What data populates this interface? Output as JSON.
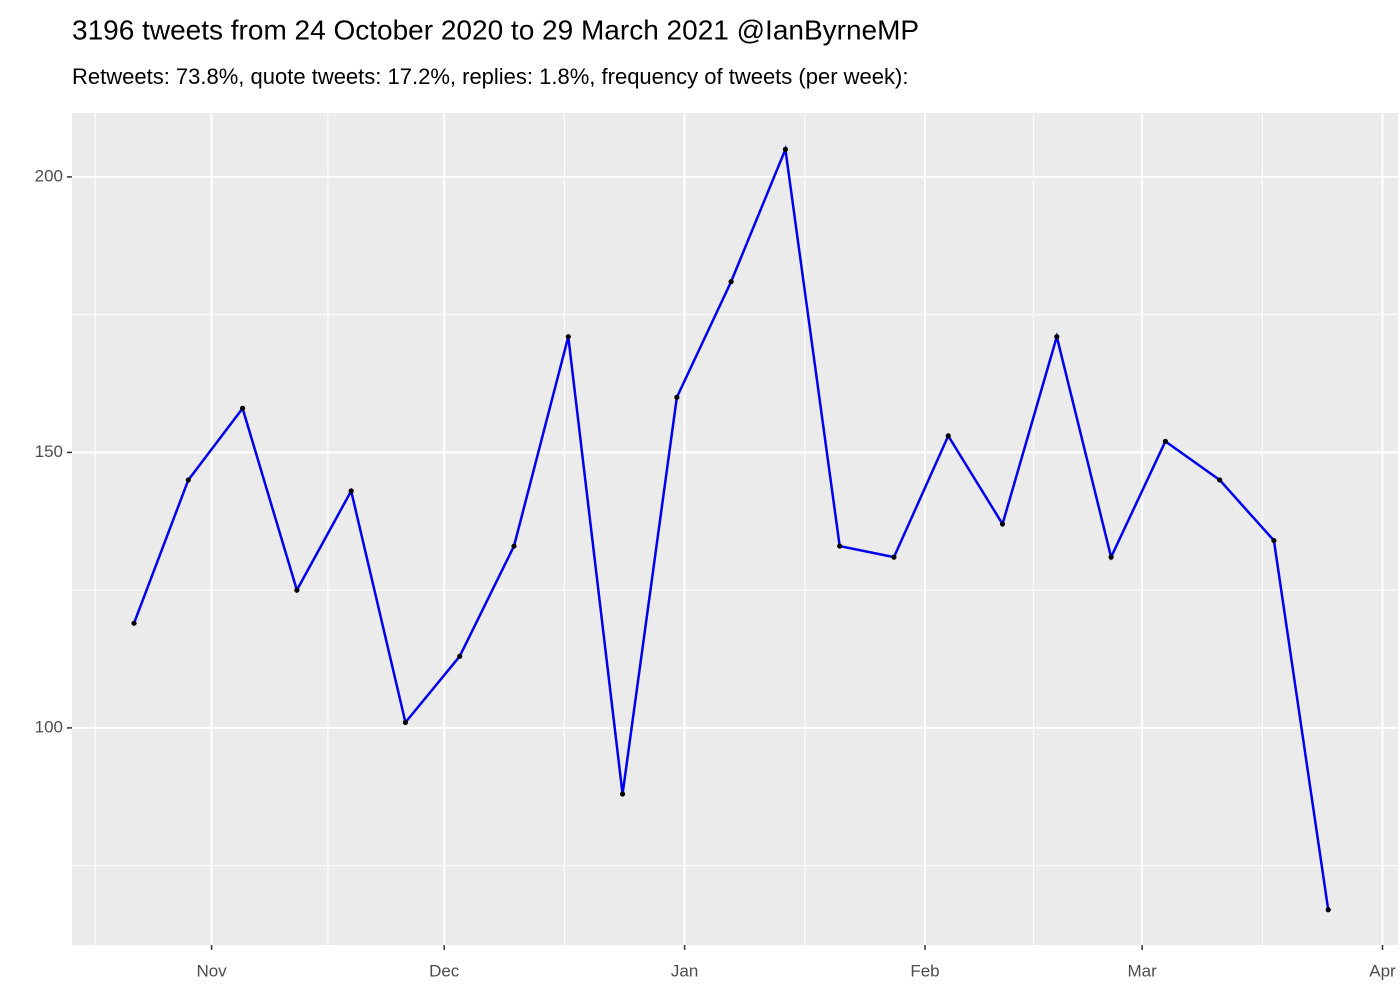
{
  "chart_data": {
    "type": "line",
    "title": "3196 tweets from 24 October 2020 to 29 March 2021 @IanByrneMP",
    "subtitle": "Retweets: 73.8%, quote tweets: 17.2%, replies: 1.8%, frequency of tweets (per week):",
    "x": [
      "2020-10-22",
      "2020-10-29",
      "2020-11-05",
      "2020-11-12",
      "2020-11-19",
      "2020-11-26",
      "2020-12-03",
      "2020-12-10",
      "2020-12-17",
      "2020-12-24",
      "2020-12-31",
      "2021-01-07",
      "2021-01-14",
      "2021-01-21",
      "2021-01-28",
      "2021-02-04",
      "2021-02-11",
      "2021-02-18",
      "2021-02-25",
      "2021-03-04",
      "2021-03-11",
      "2021-03-18",
      "2021-03-25"
    ],
    "series": [
      {
        "color": "#0000ee",
        "values": [
          119,
          145,
          158,
          125,
          143,
          101,
          113,
          133,
          171,
          88,
          160,
          181,
          205,
          133,
          131,
          153,
          137,
          171,
          131,
          152,
          145,
          134,
          67
        ]
      }
    ],
    "xlim": [
      "2020-10-14",
      "2021-04-03"
    ],
    "xticks": [
      {
        "value": "2020-11-01",
        "label": "Nov"
      },
      {
        "value": "2020-12-01",
        "label": "Dec"
      },
      {
        "value": "2021-01-01",
        "label": "Jan"
      },
      {
        "value": "2021-02-01",
        "label": "Feb"
      },
      {
        "value": "2021-03-01",
        "label": "Mar"
      },
      {
        "value": "2021-04-01",
        "label": "Apr"
      }
    ],
    "ylim": [
      60.6,
      211.6
    ],
    "yticks": [
      100,
      150,
      200
    ],
    "grid": true
  }
}
